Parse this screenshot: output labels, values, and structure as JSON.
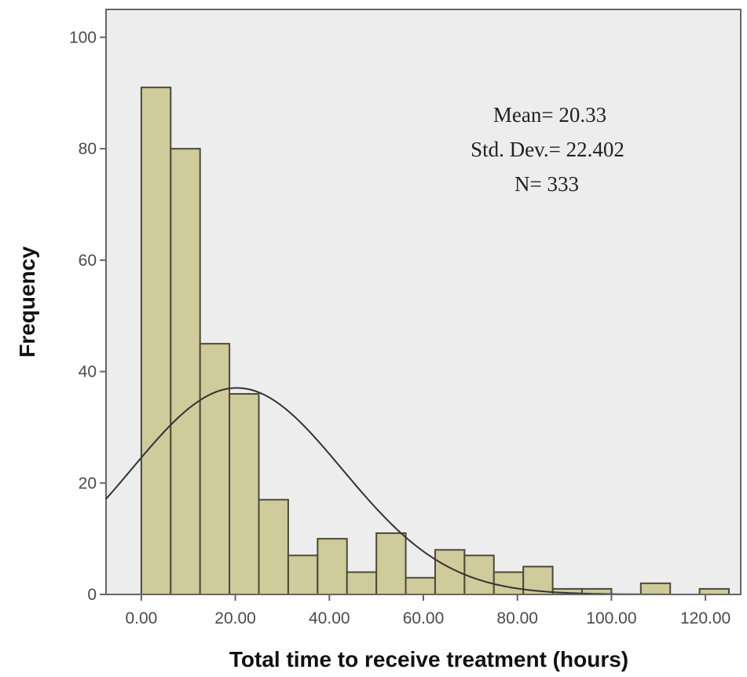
{
  "chart_data": {
    "type": "bar",
    "subtype": "histogram",
    "xlabel": "Total time to receive treatment (hours)",
    "ylabel": "Frequency",
    "xlim": [
      -7.5,
      127.5
    ],
    "ylim": [
      0,
      105
    ],
    "x_ticks": [
      0,
      20,
      40,
      60,
      80,
      100,
      120
    ],
    "x_tick_labels": [
      "0.00",
      "20.00",
      "40.00",
      "60.00",
      "80.00",
      "100.00",
      "120.00"
    ],
    "y_ticks": [
      0,
      20,
      40,
      60,
      80,
      100
    ],
    "y_tick_labels": [
      "0",
      "20",
      "40",
      "60",
      "80",
      "100"
    ],
    "bins": [
      {
        "from": 0.0,
        "to": 6.25,
        "count": 91
      },
      {
        "from": 6.25,
        "to": 12.5,
        "count": 80
      },
      {
        "from": 12.5,
        "to": 18.75,
        "count": 45
      },
      {
        "from": 18.75,
        "to": 25.0,
        "count": 36
      },
      {
        "from": 25.0,
        "to": 31.25,
        "count": 17
      },
      {
        "from": 31.25,
        "to": 37.5,
        "count": 7
      },
      {
        "from": 37.5,
        "to": 43.75,
        "count": 10
      },
      {
        "from": 43.75,
        "to": 50.0,
        "count": 4
      },
      {
        "from": 50.0,
        "to": 56.25,
        "count": 11
      },
      {
        "from": 56.25,
        "to": 62.5,
        "count": 3
      },
      {
        "from": 62.5,
        "to": 68.75,
        "count": 8
      },
      {
        "from": 68.75,
        "to": 75.0,
        "count": 7
      },
      {
        "from": 75.0,
        "to": 81.25,
        "count": 4
      },
      {
        "from": 81.25,
        "to": 87.5,
        "count": 5
      },
      {
        "from": 87.5,
        "to": 93.75,
        "count": 1
      },
      {
        "from": 93.75,
        "to": 100.0,
        "count": 1
      },
      {
        "from": 106.25,
        "to": 112.5,
        "count": 2
      },
      {
        "from": 118.75,
        "to": 125.0,
        "count": 1
      }
    ],
    "normal_curve": {
      "mean": 20.33,
      "std_dev": 22.402,
      "n": 333
    },
    "stats_lines": [
      "Mean= 20.33",
      "Std. Dev.= 22.402",
      "N= 333"
    ],
    "grid": false,
    "colors": {
      "bar_fill": "#cfcb9a",
      "bar_stroke": "#4a4a3a",
      "plot_background": "#ededed",
      "curve": "#333333"
    }
  }
}
